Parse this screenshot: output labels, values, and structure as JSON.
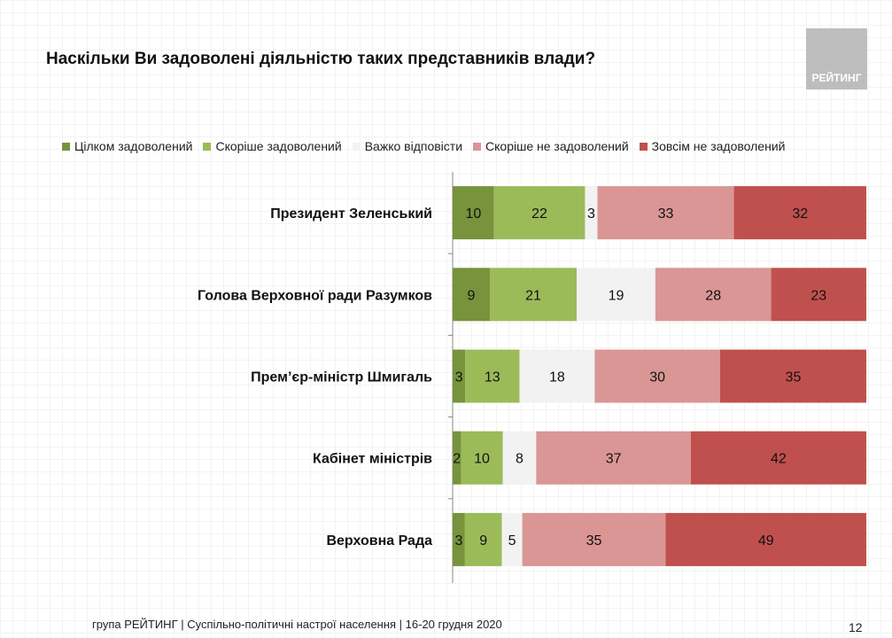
{
  "logo_text": "РЕЙТИНГ",
  "footer": "група РЕЙТИНГ | Суспільно-політичні настрої населення | 16-20 грудня 2020",
  "page_number": "12",
  "chart_data": {
    "type": "bar",
    "orientation": "horizontal-stacked-100",
    "title": "Наскільки Ви задоволені діяльністю таких представників влади?",
    "legend_position": "top",
    "categories": [
      "Президент Зеленський",
      "Голова Верховної ради Разумков",
      "Прем’єр-міністр Шмигаль",
      "Кабінет міністрів",
      "Верховна Рада"
    ],
    "series": [
      {
        "name": "Цілком задоволений",
        "color": "#77933c",
        "values": [
          10,
          9,
          3,
          2,
          3
        ]
      },
      {
        "name": "Скоріше задоволений",
        "color": "#9bbb59",
        "values": [
          22,
          21,
          13,
          10,
          9
        ]
      },
      {
        "name": "Важко відповісти",
        "color": "#f2f2f2",
        "values": [
          3,
          19,
          18,
          8,
          5
        ]
      },
      {
        "name": "Скоріше не задоволений",
        "color": "#d99694",
        "values": [
          33,
          28,
          30,
          37,
          35
        ]
      },
      {
        "name": "Зовсім не задоволений",
        "color": "#c0504d",
        "values": [
          32,
          23,
          35,
          42,
          49
        ]
      }
    ],
    "xlim": [
      0,
      100
    ]
  }
}
